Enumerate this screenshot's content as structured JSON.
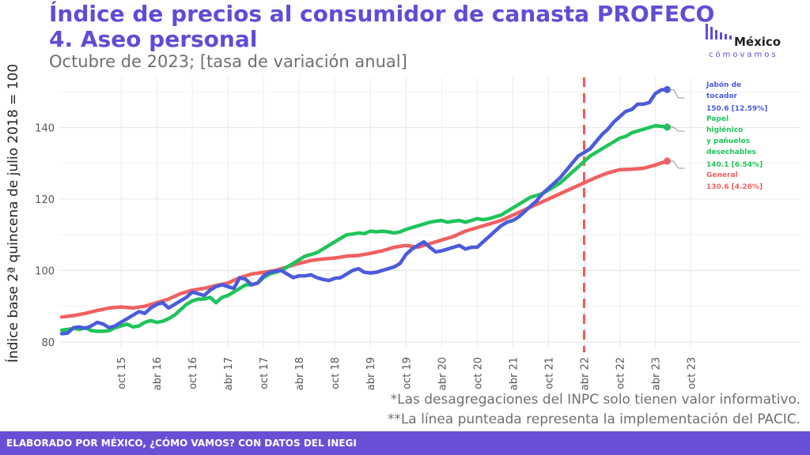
{
  "title_line1": "Índice de precios al consumidor de canasta PROFECO",
  "title_line2": "4. Aseo personal",
  "subtitle": "Octubre de 2023; [tasa de variación anual]",
  "logo": {
    "word": "México",
    "sub": "cómovamos"
  },
  "notes": [
    "*Las desagregaciones del INPC solo tienen valor informativo.",
    "**La línea punteada representa la implementación del PACIC."
  ],
  "footer": "ELABORADO POR MÉXICO, ¿CÓMO VAMOS? CON DATOS DEL INEGI",
  "colors": {
    "title": "#5f4dd6",
    "footer": "#6a4fd6",
    "dashed": "#f0575a"
  },
  "chart_data": {
    "type": "line",
    "ylabel": "Índice base 2ª quincena de julio 2018 = 100",
    "xlabel": "",
    "ylim": [
      78,
      154
    ],
    "yticks": [
      80,
      100,
      120,
      140
    ],
    "x_start": "2015-01",
    "x_end": "2023-10",
    "xtick_labels": [
      {
        "month": 10,
        "label": "oct 15"
      },
      {
        "month": 16,
        "label": "abr 16"
      },
      {
        "month": 22,
        "label": "oct 16"
      },
      {
        "month": 28,
        "label": "abr 17"
      },
      {
        "month": 34,
        "label": "oct 17"
      },
      {
        "month": 40,
        "label": "abr 18"
      },
      {
        "month": 46,
        "label": "oct 18"
      },
      {
        "month": 52,
        "label": "abr 19"
      },
      {
        "month": 58,
        "label": "oct 19"
      },
      {
        "month": 64,
        "label": "abr 20"
      },
      {
        "month": 70,
        "label": "oct 20"
      },
      {
        "month": 76,
        "label": "abr 21"
      },
      {
        "month": 82,
        "label": "oct 21"
      },
      {
        "month": 88,
        "label": "abr 22"
      },
      {
        "month": 94,
        "label": "oct 22"
      },
      {
        "month": 100,
        "label": "abr 23"
      },
      {
        "month": 106,
        "label": "oct 23"
      }
    ],
    "vline_month": 88,
    "grid": true,
    "series": [
      {
        "name": "Jabón de tocador",
        "end_label": [
          "Jabón de",
          "tocador",
          "150.6 [12.59%]"
        ],
        "color": "#4a5bdc",
        "points": [
          [
            0,
            82.3
          ],
          [
            1,
            82.5
          ],
          [
            2,
            84
          ],
          [
            3,
            84.2
          ],
          [
            4,
            83.8
          ],
          [
            5,
            84.5
          ],
          [
            6,
            85.5
          ],
          [
            7,
            85
          ],
          [
            8,
            84
          ],
          [
            9,
            84.5
          ],
          [
            10,
            85.5
          ],
          [
            11,
            86.5
          ],
          [
            12,
            87.5
          ],
          [
            13,
            88.5
          ],
          [
            14,
            88
          ],
          [
            15,
            89.5
          ],
          [
            16,
            90.5
          ],
          [
            17,
            91
          ],
          [
            18,
            89.5
          ],
          [
            19,
            90.5
          ],
          [
            20,
            91.5
          ],
          [
            21,
            92.5
          ],
          [
            22,
            94
          ],
          [
            23,
            93.5
          ],
          [
            24,
            93
          ],
          [
            25,
            94.5
          ],
          [
            26,
            95.5
          ],
          [
            27,
            96
          ],
          [
            28,
            95.5
          ],
          [
            29,
            95
          ],
          [
            30,
            98
          ],
          [
            31,
            97.5
          ],
          [
            32,
            96
          ],
          [
            33,
            96.5
          ],
          [
            34,
            98.5
          ],
          [
            35,
            99.5
          ],
          [
            36,
            99.8
          ],
          [
            37,
            100
          ],
          [
            38,
            99
          ],
          [
            39,
            98
          ],
          [
            40,
            98.5
          ],
          [
            41,
            98.5
          ],
          [
            42,
            98.8
          ],
          [
            43,
            98
          ],
          [
            44,
            97.5
          ],
          [
            45,
            97.2
          ],
          [
            46,
            97.8
          ],
          [
            47,
            98
          ],
          [
            48,
            99
          ],
          [
            49,
            100
          ],
          [
            50,
            100.5
          ],
          [
            51,
            99.5
          ],
          [
            52,
            99.3
          ],
          [
            53,
            99.5
          ],
          [
            54,
            100
          ],
          [
            55,
            100.5
          ],
          [
            56,
            101
          ],
          [
            57,
            102
          ],
          [
            58,
            104.5
          ],
          [
            59,
            106
          ],
          [
            60,
            107
          ],
          [
            61,
            108
          ],
          [
            62,
            106.5
          ],
          [
            63,
            105.2
          ],
          [
            64,
            105.5
          ],
          [
            65,
            106
          ],
          [
            66,
            106.5
          ],
          [
            67,
            107
          ],
          [
            68,
            106
          ],
          [
            69,
            106.5
          ],
          [
            70,
            106.5
          ],
          [
            71,
            108
          ],
          [
            72,
            109.5
          ],
          [
            73,
            111
          ],
          [
            74,
            112.5
          ],
          [
            75,
            113.5
          ],
          [
            76,
            114
          ],
          [
            77,
            115
          ],
          [
            78,
            116.5
          ],
          [
            79,
            118
          ],
          [
            80,
            119.5
          ],
          [
            81,
            121.5
          ],
          [
            82,
            123
          ],
          [
            83,
            124.5
          ],
          [
            84,
            126
          ],
          [
            85,
            128
          ],
          [
            86,
            130
          ],
          [
            87,
            132
          ],
          [
            88,
            133
          ],
          [
            89,
            134
          ],
          [
            90,
            136
          ],
          [
            91,
            138
          ],
          [
            92,
            139.5
          ],
          [
            93,
            141.5
          ],
          [
            94,
            143
          ],
          [
            95,
            144.5
          ],
          [
            96,
            145
          ],
          [
            97,
            146.5
          ],
          [
            98,
            146.5
          ],
          [
            99,
            147
          ],
          [
            100,
            149.5
          ],
          [
            101,
            150.5
          ],
          [
            102,
            150.6
          ]
        ]
      },
      {
        "name": "Papel higiénico y pañuelos desechables",
        "end_label": [
          "Papel",
          "higiénico",
          "y pañuelos",
          "desechables",
          "140.1 [6.54%]"
        ],
        "color": "#1ec45a",
        "points": [
          [
            0,
            83.3
          ],
          [
            1,
            83.5
          ],
          [
            2,
            83.8
          ],
          [
            3,
            83.5
          ],
          [
            4,
            84
          ],
          [
            5,
            83.2
          ],
          [
            6,
            83
          ],
          [
            7,
            83
          ],
          [
            8,
            83.2
          ],
          [
            9,
            84
          ],
          [
            10,
            84.5
          ],
          [
            11,
            85
          ],
          [
            12,
            84.2
          ],
          [
            13,
            84.5
          ],
          [
            14,
            85.5
          ],
          [
            15,
            86
          ],
          [
            16,
            85.5
          ],
          [
            17,
            85.8
          ],
          [
            18,
            86.5
          ],
          [
            19,
            87.5
          ],
          [
            20,
            89
          ],
          [
            21,
            90.5
          ],
          [
            22,
            91.5
          ],
          [
            23,
            92
          ],
          [
            24,
            92
          ],
          [
            25,
            92.5
          ],
          [
            26,
            91
          ],
          [
            27,
            92.5
          ],
          [
            28,
            93
          ],
          [
            29,
            94
          ],
          [
            30,
            95
          ],
          [
            31,
            96
          ],
          [
            32,
            96
          ],
          [
            33,
            96.5
          ],
          [
            34,
            98
          ],
          [
            35,
            99
          ],
          [
            36,
            99.5
          ],
          [
            37,
            100
          ],
          [
            38,
            101
          ],
          [
            39,
            102
          ],
          [
            40,
            103
          ],
          [
            41,
            104
          ],
          [
            42,
            104.5
          ],
          [
            43,
            105
          ],
          [
            44,
            106
          ],
          [
            45,
            107
          ],
          [
            46,
            108
          ],
          [
            47,
            109
          ],
          [
            48,
            110
          ],
          [
            49,
            110.2
          ],
          [
            50,
            110.5
          ],
          [
            51,
            110.3
          ],
          [
            52,
            111
          ],
          [
            53,
            110.8
          ],
          [
            54,
            111
          ],
          [
            55,
            110.8
          ],
          [
            56,
            110.5
          ],
          [
            57,
            110.8
          ],
          [
            58,
            111.5
          ],
          [
            59,
            112
          ],
          [
            60,
            112.5
          ],
          [
            61,
            113
          ],
          [
            62,
            113.5
          ],
          [
            63,
            113.8
          ],
          [
            64,
            114
          ],
          [
            65,
            113.5
          ],
          [
            66,
            113.8
          ],
          [
            67,
            114
          ],
          [
            68,
            113.5
          ],
          [
            69,
            114
          ],
          [
            70,
            114.5
          ],
          [
            71,
            114.2
          ],
          [
            72,
            114.5
          ],
          [
            73,
            115
          ],
          [
            74,
            115.5
          ],
          [
            75,
            116.5
          ],
          [
            76,
            117.5
          ],
          [
            77,
            118.5
          ],
          [
            78,
            119.5
          ],
          [
            79,
            120.5
          ],
          [
            80,
            121
          ],
          [
            81,
            121.5
          ],
          [
            82,
            122.5
          ],
          [
            83,
            123.5
          ],
          [
            84,
            124.5
          ],
          [
            85,
            126
          ],
          [
            86,
            127.5
          ],
          [
            87,
            129
          ],
          [
            88,
            130.5
          ],
          [
            89,
            132
          ],
          [
            90,
            133
          ],
          [
            91,
            134
          ],
          [
            92,
            135
          ],
          [
            93,
            136
          ],
          [
            94,
            137
          ],
          [
            95,
            137.5
          ],
          [
            96,
            138.5
          ],
          [
            97,
            139
          ],
          [
            98,
            139.5
          ],
          [
            99,
            140
          ],
          [
            100,
            140.5
          ],
          [
            101,
            140.3
          ],
          [
            102,
            140.1
          ]
        ]
      },
      {
        "name": "General",
        "end_label": [
          "General",
          "130.6 [4.26%]"
        ],
        "color": "#f06060",
        "points": [
          [
            0,
            87
          ],
          [
            2,
            87.4
          ],
          [
            4,
            88
          ],
          [
            6,
            88.8
          ],
          [
            8,
            89.5
          ],
          [
            10,
            89.8
          ],
          [
            12,
            89.5
          ],
          [
            14,
            90
          ],
          [
            16,
            91
          ],
          [
            18,
            92
          ],
          [
            20,
            93.5
          ],
          [
            22,
            94.5
          ],
          [
            24,
            95
          ],
          [
            26,
            95.8
          ],
          [
            28,
            96.5
          ],
          [
            30,
            98
          ],
          [
            32,
            99
          ],
          [
            34,
            99.5
          ],
          [
            36,
            100
          ],
          [
            38,
            101
          ],
          [
            40,
            102
          ],
          [
            42,
            102.8
          ],
          [
            44,
            103.2
          ],
          [
            46,
            103.5
          ],
          [
            48,
            104
          ],
          [
            50,
            104.2
          ],
          [
            52,
            104.8
          ],
          [
            54,
            105.5
          ],
          [
            56,
            106.5
          ],
          [
            58,
            107
          ],
          [
            60,
            106.5
          ],
          [
            62,
            107.5
          ],
          [
            64,
            108.5
          ],
          [
            66,
            109.5
          ],
          [
            68,
            111
          ],
          [
            70,
            112
          ],
          [
            72,
            113
          ],
          [
            74,
            114
          ],
          [
            76,
            115.5
          ],
          [
            78,
            117
          ],
          [
            80,
            118.5
          ],
          [
            82,
            120
          ],
          [
            84,
            121.5
          ],
          [
            86,
            123
          ],
          [
            88,
            124.5
          ],
          [
            90,
            126
          ],
          [
            92,
            127.3
          ],
          [
            94,
            128.2
          ],
          [
            96,
            128.3
          ],
          [
            98,
            128.6
          ],
          [
            100,
            129.5
          ],
          [
            102,
            130.6
          ]
        ]
      }
    ]
  }
}
